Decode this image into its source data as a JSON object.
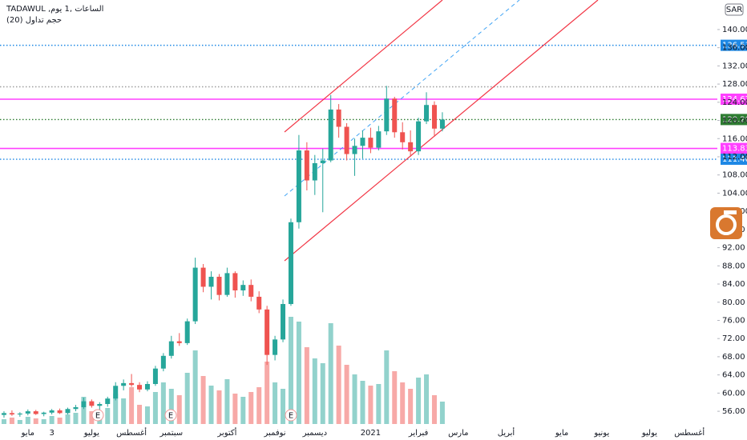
{
  "chart_data": {
    "type": "candlestick",
    "title": "TADAWUL ,الساعات ,1 يوم",
    "subtitle": "حجم تداول (20)",
    "currency": "SAR",
    "categories": [
      null,
      null,
      null,
      "مايو",
      null,
      null,
      "3",
      null,
      null,
      null,
      null,
      "يوليو",
      null,
      null,
      null,
      null,
      "أغسطس",
      null,
      null,
      null,
      null,
      "سبتمبر",
      null,
      null,
      null,
      null,
      null,
      null,
      "أكتوبر",
      null,
      null,
      null,
      null,
      null,
      "نوفمبر",
      null,
      null,
      null,
      null,
      "ديسمبر",
      null,
      null,
      null,
      null,
      null,
      null,
      "2021",
      null,
      null,
      null,
      null,
      null,
      "فبراير",
      null,
      null,
      null,
      null,
      "مارس",
      null,
      null,
      null,
      null,
      null,
      "أبريل",
      null,
      null,
      null,
      null,
      null,
      null,
      "مايو",
      null,
      null,
      null,
      null,
      "يونيو",
      null,
      null,
      null,
      null,
      null,
      "يوليو",
      null,
      null,
      null,
      null,
      "أغسطس",
      null,
      null,
      null
    ],
    "open": [
      55.2,
      55.6,
      55.3,
      55.5,
      56.0,
      55.4,
      55.7,
      56.2,
      55.6,
      56.5,
      56.9,
      58.2,
      57.2,
      57.6,
      58.8,
      61.6,
      62.2,
      61.8,
      60.8,
      62.0,
      65.4,
      68.2,
      71.4,
      71.0,
      75.8,
      87.6,
      83.4,
      85.6,
      81.6,
      86.4,
      82.6,
      83.8,
      81.2,
      78.4,
      68.4,
      71.8,
      79.6,
      97.6,
      113.4,
      106.8,
      110.6,
      111.2,
      122.4,
      118.6,
      112.6,
      114.4,
      116.2,
      114.0,
      117.6,
      124.8,
      117.4,
      115.2,
      113.2,
      119.8,
      123.4,
      118.2,
      null,
      null,
      null,
      null,
      null,
      null,
      null,
      null,
      null,
      null,
      null,
      null,
      null,
      null,
      null,
      null,
      null,
      null,
      null,
      null,
      null,
      null,
      null,
      null,
      null,
      null,
      null,
      null,
      null,
      null,
      null,
      null,
      null,
      null
    ],
    "high": [
      56.0,
      56.2,
      55.8,
      56.4,
      56.3,
      55.9,
      56.5,
      56.6,
      56.8,
      57.4,
      59.0,
      58.6,
      58.0,
      59.2,
      62.4,
      63.0,
      64.2,
      62.4,
      62.6,
      66.0,
      68.8,
      72.6,
      73.2,
      76.4,
      89.8,
      88.4,
      86.8,
      86.2,
      87.6,
      86.8,
      84.8,
      85.0,
      82.4,
      79.2,
      72.6,
      80.6,
      98.4,
      116.8,
      115.2,
      112.4,
      113.8,
      125.6,
      123.6,
      119.4,
      116.0,
      117.8,
      118.4,
      118.8,
      127.6,
      125.2,
      119.6,
      117.8,
      120.6,
      126.2,
      124.2,
      121.8,
      null,
      null,
      null,
      null,
      null,
      null,
      null,
      null,
      null,
      null,
      null,
      null,
      null,
      null,
      null,
      null,
      null,
      null,
      null,
      null,
      null,
      null,
      null,
      null,
      null,
      null,
      null,
      null,
      null,
      null,
      null,
      null,
      null,
      null
    ],
    "low": [
      54.6,
      55.0,
      54.8,
      55.1,
      55.2,
      54.9,
      55.3,
      55.4,
      55.3,
      56.0,
      56.5,
      56.8,
      56.0,
      57.0,
      58.4,
      60.6,
      61.4,
      60.2,
      60.4,
      61.6,
      64.8,
      67.6,
      70.4,
      70.6,
      75.2,
      82.2,
      80.6,
      80.4,
      81.2,
      81.0,
      81.4,
      80.2,
      77.6,
      66.2,
      67.2,
      71.2,
      79.2,
      96.2,
      104.6,
      103.6,
      99.8,
      110.8,
      116.2,
      111.2,
      107.8,
      111.6,
      112.8,
      113.4,
      116.8,
      116.2,
      113.6,
      112.0,
      112.4,
      119.2,
      116.4,
      117.6,
      null,
      null,
      null,
      null,
      null,
      null,
      null,
      null,
      null,
      null,
      null,
      null,
      null,
      null,
      null,
      null,
      null,
      null,
      null,
      null,
      null,
      null,
      null,
      null,
      null,
      null,
      null,
      null,
      null,
      null,
      null,
      null,
      null,
      null
    ],
    "close": [
      55.6,
      55.3,
      55.5,
      56.0,
      55.4,
      55.7,
      56.2,
      55.6,
      56.5,
      56.9,
      58.2,
      57.2,
      57.6,
      58.8,
      61.6,
      62.2,
      61.8,
      60.8,
      62.0,
      65.4,
      68.2,
      71.4,
      71.0,
      75.8,
      87.6,
      83.4,
      85.6,
      81.6,
      86.4,
      82.6,
      83.8,
      81.2,
      78.4,
      68.4,
      71.8,
      79.6,
      97.6,
      113.4,
      106.8,
      110.6,
      111.2,
      122.4,
      118.6,
      112.6,
      114.4,
      116.2,
      114.0,
      117.6,
      124.8,
      117.4,
      115.2,
      113.2,
      119.8,
      123.4,
      118.2,
      120.2,
      null,
      null,
      null,
      null,
      null,
      null,
      null,
      null,
      null,
      null,
      null,
      null,
      null,
      null,
      null,
      null,
      null,
      null,
      null,
      null,
      null,
      null,
      null,
      null,
      null,
      null,
      null,
      null,
      null,
      null,
      null,
      null,
      null,
      null
    ],
    "volume": [
      0.6,
      0.8,
      0.5,
      0.9,
      0.7,
      0.6,
      1.0,
      0.8,
      1.2,
      1.4,
      3.4,
      1.6,
      1.2,
      2.0,
      3.8,
      3.2,
      4.6,
      2.4,
      2.2,
      4.0,
      5.2,
      4.4,
      3.6,
      6.4,
      9.2,
      6.0,
      4.8,
      4.2,
      5.6,
      3.8,
      3.4,
      4.0,
      4.6,
      7.8,
      5.2,
      4.4,
      13.4,
      12.8,
      9.6,
      8.2,
      7.6,
      12.6,
      9.8,
      7.4,
      6.2,
      5.4,
      4.8,
      5.0,
      9.2,
      6.6,
      5.2,
      4.4,
      5.8,
      6.2,
      3.6,
      2.8,
      null,
      null,
      null,
      null,
      null,
      null,
      null,
      null,
      null,
      null,
      null,
      null,
      null,
      null,
      null,
      null,
      null,
      null,
      null,
      null,
      null,
      null,
      null,
      null,
      null,
      null,
      null,
      null,
      null,
      null,
      null,
      null,
      null,
      null
    ],
    "volume_ylim": [
      0,
      15
    ],
    "up_color": "#26a69a",
    "down_color": "#ef5350",
    "ylim": [
      53.2,
      146.5
    ],
    "yticks": [
      {
        "value": 56,
        "label": "56.00"
      },
      {
        "value": 60,
        "label": "60.00"
      },
      {
        "value": 64,
        "label": "64.00"
      },
      {
        "value": 68,
        "label": "68.00"
      },
      {
        "value": 72,
        "label": "72.00"
      },
      {
        "value": 76,
        "label": "76.00"
      },
      {
        "value": 80,
        "label": "80.00"
      },
      {
        "value": 84,
        "label": "84.00"
      },
      {
        "value": 88,
        "label": "88.00"
      },
      {
        "value": 92,
        "label": "92.00"
      },
      {
        "value": 96,
        "label": "96.00"
      },
      {
        "value": 100,
        "label": "100.00"
      },
      {
        "value": 104,
        "label": "104.00"
      },
      {
        "value": 108,
        "label": "108.00"
      },
      {
        "value": 112,
        "label": "112.00"
      },
      {
        "value": 116,
        "label": "116.00"
      },
      {
        "value": 120,
        "label": "120.00"
      },
      {
        "value": 124,
        "label": "124.00"
      },
      {
        "value": 128,
        "label": "128.00"
      },
      {
        "value": 132,
        "label": "132.00"
      },
      {
        "value": 136,
        "label": "136.00"
      },
      {
        "value": 140,
        "label": "140.00"
      }
    ],
    "price_levels": [
      {
        "value": 136.53,
        "color": "#1e88e5",
        "dotted": true
      },
      {
        "value": 127.4,
        "color": "#9e9e9e",
        "dotted": true,
        "show_label": false
      },
      {
        "value": 124.67,
        "color": "#ff40ff",
        "dotted": false
      },
      {
        "value": 120.2,
        "label": "120.20",
        "color": "#2e7d32",
        "dotted": true
      },
      {
        "value": 113.83,
        "color": "#ff40ff",
        "dotted": false
      },
      {
        "value": 111.46,
        "color": "#1e88e5",
        "dotted": true
      }
    ],
    "events": [
      "E",
      "E",
      "E"
    ]
  }
}
